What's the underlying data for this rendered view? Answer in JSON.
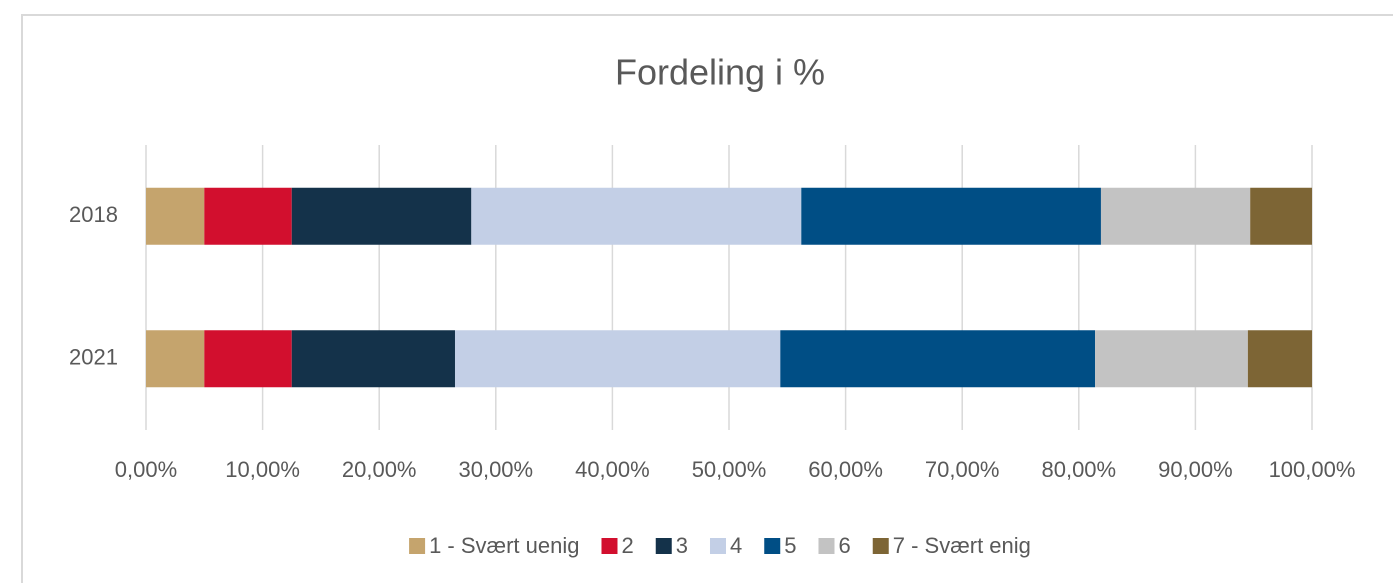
{
  "chart_data": {
    "type": "stacked_barh",
    "title": "Fordeling i %",
    "categories": [
      "2018",
      "2021"
    ],
    "series": [
      {
        "name": "1 - Svært uenig",
        "color": "#c5a46d",
        "values": [
          5.0,
          5.0
        ]
      },
      {
        "name": "2",
        "color": "#d20f2e",
        "values": [
          7.5,
          7.5
        ]
      },
      {
        "name": "3",
        "color": "#14324a",
        "values": [
          15.4,
          14.0
        ]
      },
      {
        "name": "4",
        "color": "#c3cfe6",
        "values": [
          28.3,
          27.9
        ]
      },
      {
        "name": "5",
        "color": "#004e85",
        "values": [
          25.7,
          27.0
        ]
      },
      {
        "name": "6",
        "color": "#c3c3c3",
        "values": [
          12.8,
          13.1
        ]
      },
      {
        "name": "7 - Svært enig",
        "color": "#7d6535",
        "values": [
          5.3,
          5.5
        ]
      }
    ],
    "xlim": [
      0,
      100
    ],
    "xticks": [
      {
        "value": 0,
        "label": "0,00%"
      },
      {
        "value": 10,
        "label": "10,00%"
      },
      {
        "value": 20,
        "label": "20,00%"
      },
      {
        "value": 30,
        "label": "30,00%"
      },
      {
        "value": 40,
        "label": "40,00%"
      },
      {
        "value": 50,
        "label": "50,00%"
      },
      {
        "value": 60,
        "label": "60,00%"
      },
      {
        "value": 70,
        "label": "70,00%"
      },
      {
        "value": 80,
        "label": "80,00%"
      },
      {
        "value": 90,
        "label": "90,00%"
      },
      {
        "value": 100,
        "label": "100,00%"
      }
    ],
    "grid": true,
    "legend": "bottom"
  }
}
